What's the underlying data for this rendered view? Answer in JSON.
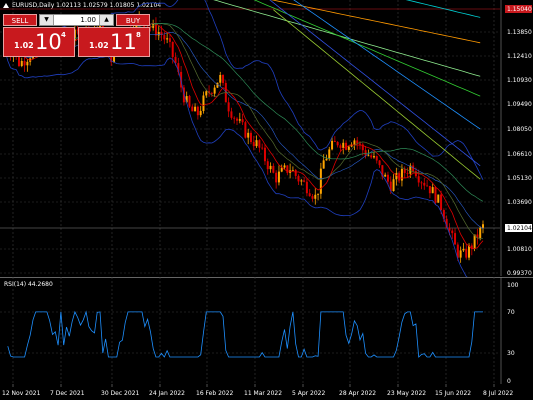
{
  "header": {
    "symbol_line": "EURUSD,Daily  1.02113 1.02579 1.01805 1.02104"
  },
  "trade_panel": {
    "sell_label": "SELL",
    "buy_label": "BUY",
    "lot_value": "1.00",
    "lot_down_glyph": "▼",
    "lot_up_glyph": "▲",
    "sell_quote": {
      "prefix": "1.02",
      "big": "10",
      "sup": "4"
    },
    "buy_quote": {
      "prefix": "1.02",
      "big": "11",
      "sup": "8"
    },
    "color": "#c8191e"
  },
  "price_axis": {
    "labels": [
      "1.15040",
      "1.13850",
      "1.12410",
      "1.10930",
      "1.09490",
      "1.08050",
      "1.06610",
      "1.05130",
      "1.03690",
      "1.02104",
      "1.00810",
      "0.99370"
    ],
    "current_price": "1.02104",
    "top_price": "1.15040",
    "top_price_color": "#c8191e"
  },
  "rsi": {
    "label": "RSI(14) 44.2680",
    "levels": [
      "100",
      "70",
      "30",
      "0"
    ],
    "line_color": "#1e90ff"
  },
  "time_axis": {
    "labels": [
      "12 Nov 2021",
      "7 Dec 2021",
      "30 Dec 2021",
      "24 Jan 2022",
      "16 Feb 2022",
      "11 Mar 2022",
      "5 Apr 2022",
      "28 Apr 2022",
      "23 May 2022",
      "15 Jun 2022",
      "8 Jul 2022"
    ]
  },
  "colors": {
    "background": "#000000",
    "grid": "#3a3a3a",
    "bull_candle": "#ffa500",
    "bear_candle": "#dd0000",
    "bollinger": "#1f3fbf"
  }
}
